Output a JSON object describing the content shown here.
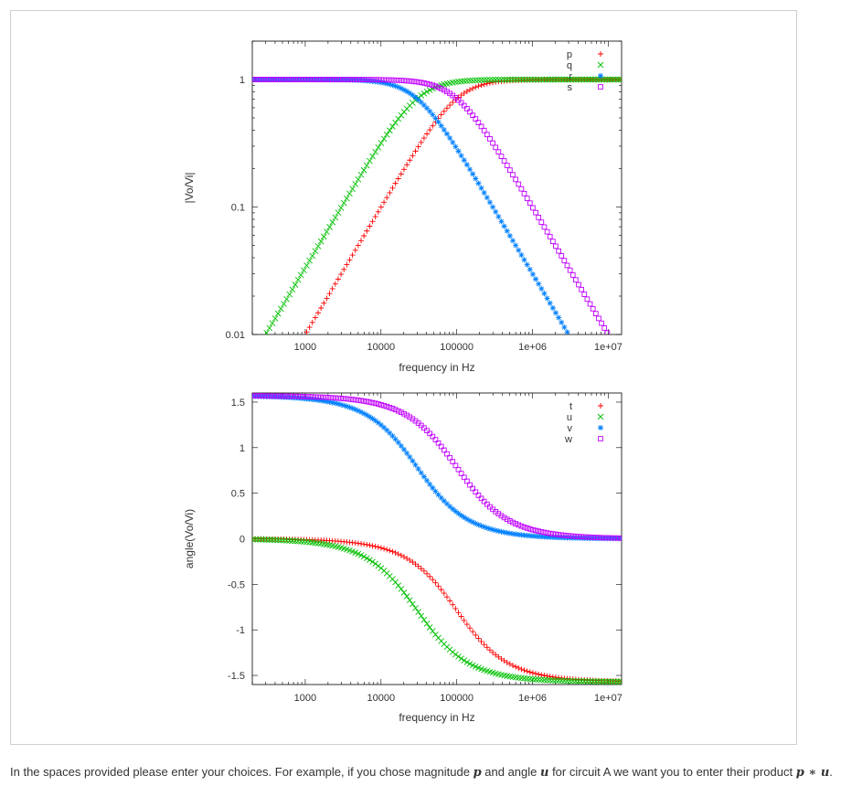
{
  "chart_data": [
    {
      "type": "scatter",
      "title": "",
      "xlabel": "frequency in Hz",
      "ylabel": "|Vo/Vi|",
      "xscale": "log",
      "yscale": "log",
      "xlim": [
        200,
        15000000
      ],
      "ylim": [
        0.01,
        2.0
      ],
      "xticks": [
        "1000",
        "10000",
        "100000",
        "1e+06",
        "1e+07"
      ],
      "yticks": [
        "0.01",
        "0.1",
        "1"
      ],
      "grid": false,
      "legend_position": "top-right",
      "series": [
        {
          "name": "p",
          "marker": "+",
          "color": "#ff0000",
          "kind": "highpass",
          "fc": 100000
        },
        {
          "name": "q",
          "marker": "×",
          "color": "#00c000",
          "kind": "highpass",
          "fc": 30000
        },
        {
          "name": "r",
          "marker": "*",
          "color": "#0080ff",
          "kind": "lowpass",
          "fc": 30000
        },
        {
          "name": "s",
          "marker": "□",
          "color": "#c000ff",
          "kind": "lowpass",
          "fc": 100000
        }
      ]
    },
    {
      "type": "scatter",
      "title": "",
      "xlabel": "frequency in Hz",
      "ylabel": "angle(Vo/Vi)",
      "xscale": "log",
      "xlim": [
        200,
        15000000
      ],
      "ylim": [
        -1.6,
        1.6
      ],
      "xticks": [
        "1000",
        "10000",
        "100000",
        "1e+06",
        "1e+07"
      ],
      "yticks": [
        "-1.5",
        "-1",
        "-0.5",
        "0",
        "0.5",
        "1",
        "1.5"
      ],
      "grid": false,
      "legend_position": "top-right",
      "series": [
        {
          "name": "t",
          "marker": "+",
          "color": "#ff0000",
          "kind": "lag",
          "fc": 100000
        },
        {
          "name": "u",
          "marker": "×",
          "color": "#00c000",
          "kind": "lag",
          "fc": 30000
        },
        {
          "name": "v",
          "marker": "*",
          "color": "#0080ff",
          "kind": "lead",
          "fc": 30000
        },
        {
          "name": "w",
          "marker": "□",
          "color": "#c000ff",
          "kind": "lead",
          "fc": 100000
        }
      ]
    }
  ],
  "instructions": {
    "part1": "In the spaces provided please enter your choices. For example, if you chose magnitude ",
    "mag_var": "p",
    "part2": " and angle ",
    "angle_var": "u",
    "part3": " for circuit A we want you to enter their product ",
    "product": "p ∗ u",
    "part4": "."
  }
}
